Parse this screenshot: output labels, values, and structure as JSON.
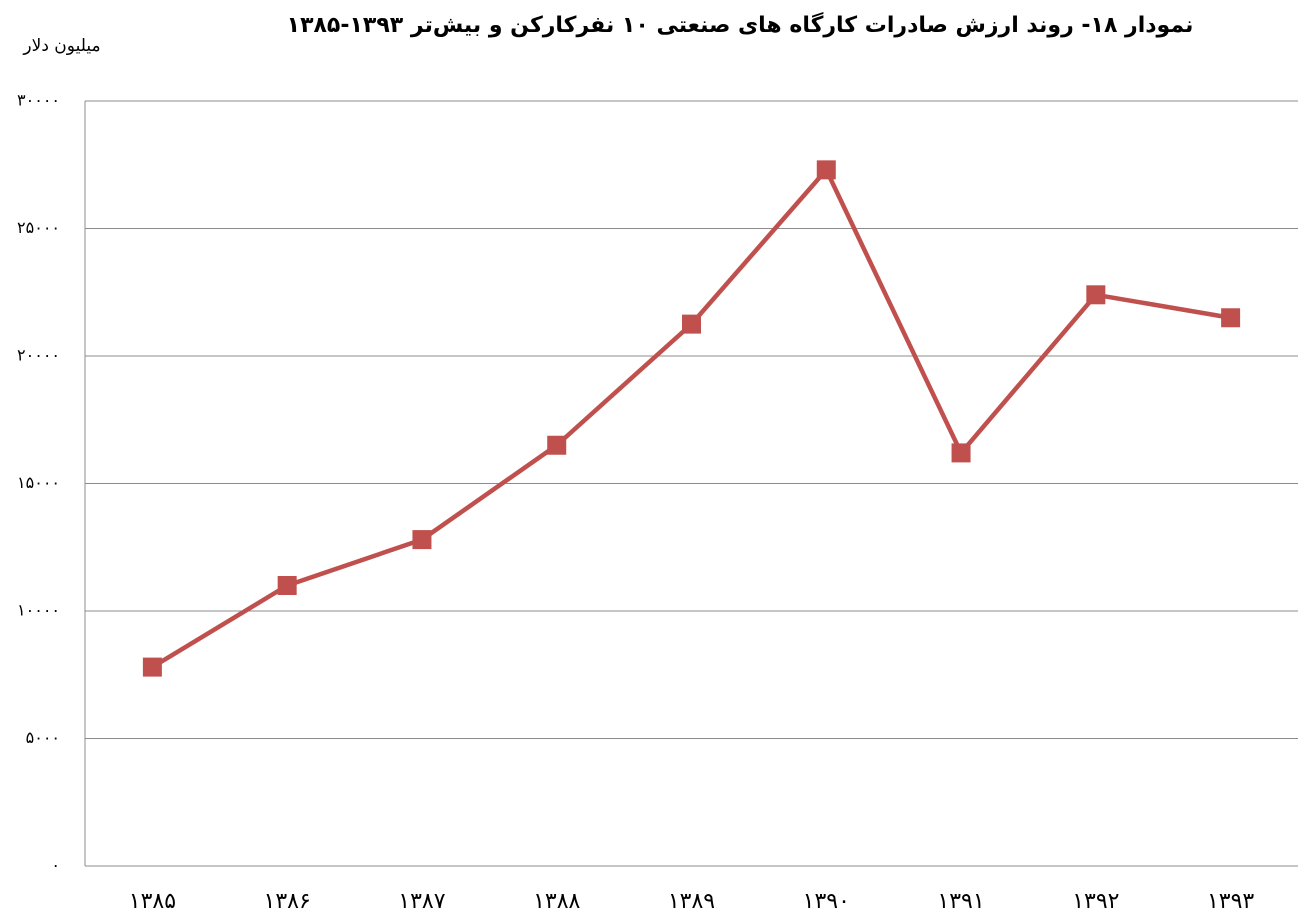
{
  "chart_data": {
    "type": "line",
    "title": "نمودار ۱۸- روند ارزش صادرات کارگاه های صنعتی ۱۰ نفرکارکن و بیش‌تر ۱۳۹۳-۱۳۸۵",
    "y_label": "میلیون دلار",
    "categories": [
      "۱۳۸۵",
      "۱۳۸۶",
      "۱۳۸۷",
      "۱۳۸۸",
      "۱۳۸۹",
      "۱۳۹۰",
      "۱۳۹۱",
      "۱۳۹۲",
      "۱۳۹۳"
    ],
    "series": [
      {
        "color": "#c0504d",
        "values": [
          7800,
          11000,
          12800,
          16500,
          21250,
          27300,
          16200,
          22400,
          21500
        ]
      }
    ],
    "ylim": [
      0,
      30000
    ],
    "yticks": [
      {
        "value": 0,
        "label": "۰"
      },
      {
        "value": 5000,
        "label": "۵۰۰۰"
      },
      {
        "value": 10000,
        "label": "۱۰۰۰۰"
      },
      {
        "value": 15000,
        "label": "۱۵۰۰۰"
      },
      {
        "value": 20000,
        "label": "۲۰۰۰۰"
      },
      {
        "value": 25000,
        "label": "۲۵۰۰۰"
      },
      {
        "value": 30000,
        "label": "۳۰۰۰۰"
      }
    ],
    "grid": true
  }
}
